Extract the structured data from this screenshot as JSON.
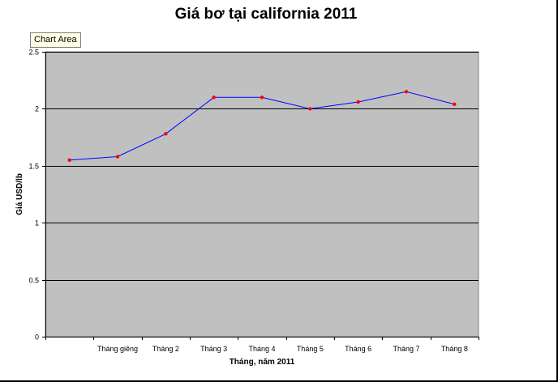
{
  "chart_data": {
    "type": "line",
    "title": "Giá bơ tại california 2011",
    "xlabel": "Tháng, năm 2011",
    "ylabel": "Giá USD/lb",
    "categories": [
      "",
      "Tháng giêng",
      "Tháng 2",
      "Tháng 3",
      "Tháng 4",
      "Tháng 5",
      "Tháng 6",
      "Tháng 7",
      "Tháng 8"
    ],
    "values": [
      1.55,
      1.58,
      1.78,
      2.1,
      2.1,
      2.0,
      2.06,
      2.15,
      2.04
    ],
    "ylim": [
      0,
      2.5
    ],
    "yticks": [
      "0",
      "0.5",
      "1",
      "1.5",
      "2",
      "2.5"
    ],
    "grid": true,
    "legend": "none",
    "colors": {
      "plot_bg": "#c0c0c0",
      "line": "#0000ff",
      "marker": "#ff0000",
      "grid": "#000000"
    }
  },
  "tooltip": {
    "label": "Chart Area"
  }
}
